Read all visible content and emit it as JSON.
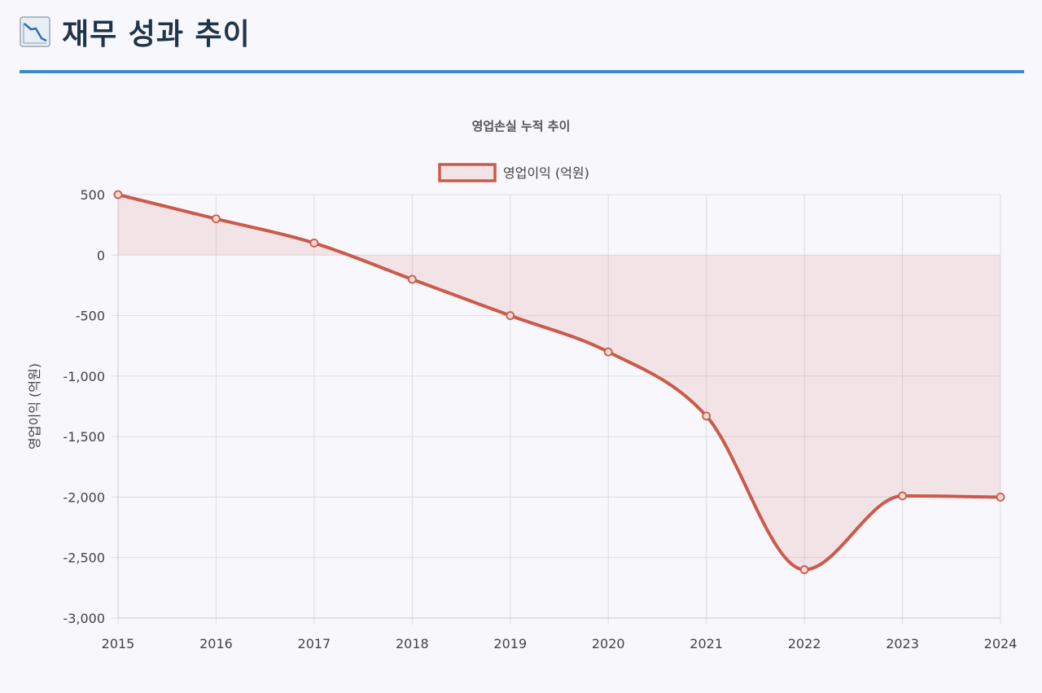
{
  "header": {
    "icon": "chart-decreasing-icon",
    "title": "재무 성과 추이"
  },
  "colors": {
    "accent": "#3a8cc6",
    "series": "#cc5a4a",
    "fill": "rgba(204,90,74,0.12)",
    "grid": "#dcdce6",
    "title_text": "#1f3448"
  },
  "chart_data": {
    "type": "line",
    "title": "영업손실 누적 추이",
    "legend_position": "top",
    "ylabel": "영업이익 (억원)",
    "xlabel": "",
    "x": [
      "2015",
      "2016",
      "2017",
      "2018",
      "2019",
      "2020",
      "2021",
      "2022",
      "2023",
      "2024"
    ],
    "series": [
      {
        "name": "영업이익 (억원)",
        "values": [
          500,
          300,
          100,
          -200,
          -500,
          -800,
          -1330,
          -2600,
          -1990,
          -2000
        ],
        "fill": "origin",
        "smooth": true
      }
    ],
    "ylim": [
      -3000,
      500
    ],
    "yticks": [
      500,
      0,
      -500,
      -1000,
      -1500,
      -2000,
      -2500,
      -3000
    ],
    "ytick_labels": [
      "500",
      "0",
      "-500",
      "-1,000",
      "-1,500",
      "-2,000",
      "-2,500",
      "-3,000"
    ],
    "grid": true
  }
}
